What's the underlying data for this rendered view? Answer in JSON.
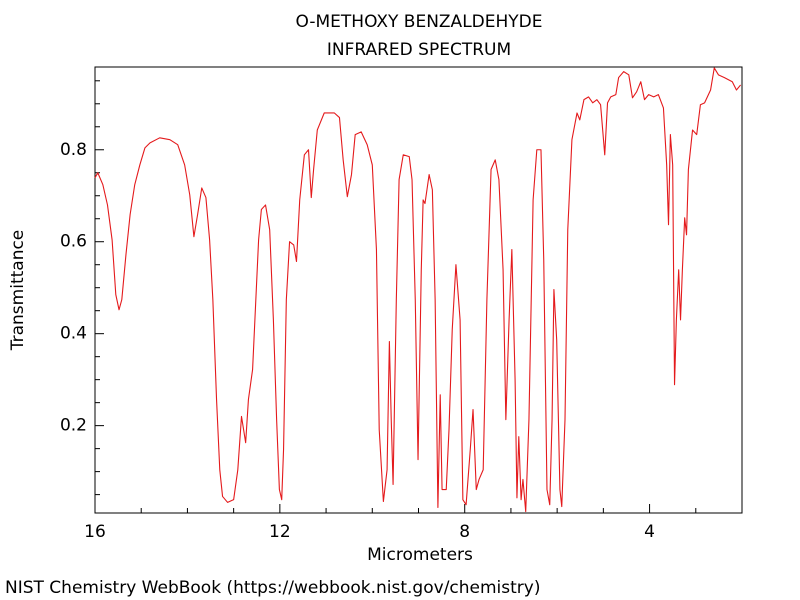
{
  "chart_data": {
    "type": "line",
    "title": "O-METHOXY BENZALDEHYDE",
    "subtitle": "INFRARED SPECTRUM",
    "xlabel": "Micrometers",
    "ylabel": "Transmittance",
    "source": "NIST Chemistry WebBook (https://webbook.nist.gov/chemistry)",
    "xlim": [
      16,
      2
    ],
    "ylim": [
      0.01,
      0.98
    ],
    "xticks": [
      16,
      12,
      8,
      4
    ],
    "yticks": [
      0.2,
      0.4,
      0.6,
      0.8
    ],
    "xminorticks": [
      15,
      14,
      13,
      11,
      10,
      9,
      7,
      6,
      5,
      3
    ],
    "yminorticks": [
      0.05,
      0.1,
      0.15,
      0.25,
      0.3,
      0.35,
      0.45,
      0.5,
      0.55,
      0.65,
      0.7,
      0.75,
      0.85,
      0.9,
      0.95
    ],
    "grid": false,
    "color": "#e41a1c",
    "x": [
      16.0,
      15.94,
      15.83,
      15.73,
      15.63,
      15.55,
      15.48,
      15.42,
      15.33,
      15.24,
      15.14,
      15.03,
      14.92,
      14.81,
      14.6,
      14.38,
      14.21,
      14.06,
      13.95,
      13.86,
      13.78,
      13.69,
      13.6,
      13.52,
      13.45,
      13.37,
      13.3,
      13.24,
      13.13,
      13.0,
      12.91,
      12.83,
      12.74,
      12.68,
      12.59,
      12.53,
      12.46,
      12.4,
      12.31,
      12.22,
      12.14,
      12.07,
      12.01,
      11.96,
      11.92,
      11.86,
      11.79,
      11.7,
      11.64,
      11.57,
      11.47,
      11.38,
      11.32,
      11.27,
      11.19,
      11.04,
      10.82,
      10.71,
      10.63,
      10.54,
      10.45,
      10.37,
      10.24,
      10.11,
      10.0,
      9.91,
      9.85,
      9.76,
      9.68,
      9.63,
      9.59,
      9.55,
      9.48,
      9.42,
      9.33,
      9.2,
      9.14,
      9.07,
      9.01,
      8.94,
      8.9,
      8.86,
      8.77,
      8.7,
      8.64,
      8.58,
      8.53,
      8.49,
      8.4,
      8.34,
      8.27,
      8.19,
      8.1,
      8.04,
      7.97,
      7.88,
      7.82,
      7.75,
      7.69,
      7.6,
      7.52,
      7.43,
      7.34,
      7.26,
      7.17,
      7.11,
      7.04,
      6.98,
      6.91,
      6.87,
      6.83,
      6.78,
      6.74,
      6.68,
      6.61,
      6.52,
      6.44,
      6.35,
      6.29,
      6.22,
      6.16,
      6.11,
      6.07,
      6.01,
      5.94,
      5.9,
      5.83,
      5.77,
      5.68,
      5.57,
      5.51,
      5.42,
      5.32,
      5.23,
      5.14,
      5.06,
      4.97,
      4.91,
      4.84,
      4.73,
      4.67,
      4.56,
      4.45,
      4.37,
      4.28,
      4.19,
      4.11,
      4.02,
      3.91,
      3.81,
      3.7,
      3.63,
      3.59,
      3.55,
      3.5,
      3.46,
      3.42,
      3.37,
      3.33,
      3.29,
      3.24,
      3.2,
      3.16,
      3.07,
      2.98,
      2.9,
      2.81,
      2.68,
      2.6,
      2.51,
      2.38,
      2.21,
      2.12,
      2.03
    ],
    "values": [
      0.739,
      0.75,
      0.724,
      0.68,
      0.604,
      0.485,
      0.452,
      0.474,
      0.572,
      0.659,
      0.724,
      0.767,
      0.804,
      0.815,
      0.826,
      0.822,
      0.811,
      0.767,
      0.702,
      0.611,
      0.659,
      0.717,
      0.696,
      0.604,
      0.474,
      0.257,
      0.104,
      0.046,
      0.033,
      0.039,
      0.104,
      0.22,
      0.163,
      0.257,
      0.322,
      0.452,
      0.604,
      0.67,
      0.68,
      0.626,
      0.43,
      0.213,
      0.061,
      0.039,
      0.148,
      0.474,
      0.6,
      0.593,
      0.557,
      0.691,
      0.789,
      0.8,
      0.696,
      0.757,
      0.843,
      0.88,
      0.88,
      0.87,
      0.778,
      0.698,
      0.746,
      0.833,
      0.839,
      0.811,
      0.767,
      0.583,
      0.191,
      0.035,
      0.104,
      0.383,
      0.213,
      0.072,
      0.474,
      0.735,
      0.789,
      0.785,
      0.735,
      0.474,
      0.126,
      0.539,
      0.691,
      0.683,
      0.746,
      0.713,
      0.474,
      0.022,
      0.267,
      0.061,
      0.061,
      0.191,
      0.409,
      0.55,
      0.43,
      0.039,
      0.028,
      0.148,
      0.235,
      0.061,
      0.083,
      0.104,
      0.474,
      0.757,
      0.778,
      0.735,
      0.539,
      0.213,
      0.43,
      0.583,
      0.3,
      0.043,
      0.176,
      0.039,
      0.083,
      0.013,
      0.213,
      0.691,
      0.8,
      0.8,
      0.561,
      0.061,
      0.028,
      0.213,
      0.496,
      0.387,
      0.061,
      0.024,
      0.213,
      0.626,
      0.822,
      0.88,
      0.865,
      0.909,
      0.915,
      0.902,
      0.909,
      0.898,
      0.789,
      0.902,
      0.915,
      0.92,
      0.957,
      0.97,
      0.963,
      0.913,
      0.926,
      0.948,
      0.909,
      0.92,
      0.915,
      0.92,
      0.891,
      0.767,
      0.637,
      0.833,
      0.767,
      0.289,
      0.43,
      0.539,
      0.43,
      0.539,
      0.652,
      0.615,
      0.757,
      0.843,
      0.833,
      0.898,
      0.902,
      0.93,
      0.978,
      0.963,
      0.957,
      0.948,
      0.93,
      0.941
    ]
  }
}
